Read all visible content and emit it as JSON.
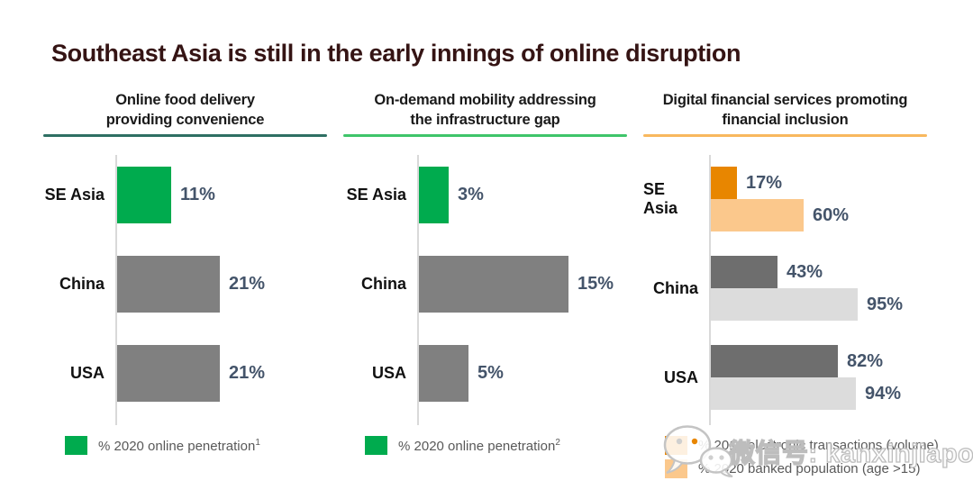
{
  "slide_title": "Southeast Asia is still in the early innings of online disruption",
  "watermark": {
    "icon": "wechat-icon",
    "text": "微信号: kanxinjiapo"
  },
  "colors": {
    "title_text": "#351414",
    "axis_line": "#d9d9d9",
    "value_label": "#44546a",
    "legend_text": "#595959",
    "green_accent": "#00ab4e",
    "gray_bar": "#808080",
    "dark_orange": "#e88600",
    "light_orange": "#fbc88c",
    "dark_gray_bar": "#6e6e6e",
    "light_gray_bar": "#dcdcdc"
  },
  "chart_data": [
    {
      "type": "bar",
      "orientation": "horizontal",
      "title": "Online food delivery providing convenience",
      "title_lines": [
        "Online food delivery",
        "providing convenience"
      ],
      "underline_color": "#2e6f63",
      "categories": [
        "SE Asia",
        "China",
        "USA"
      ],
      "series": [
        {
          "name": "% 2020 online penetration",
          "legend_superscript": "1",
          "legend_color": "#00ab4e",
          "values": [
            11,
            21,
            21
          ],
          "bar_colors": [
            "#00ab4e",
            "#808080",
            "#808080"
          ]
        }
      ],
      "value_suffix": "%",
      "xlim": [
        0,
        53
      ],
      "grid": false,
      "legend_position": "bottom-left"
    },
    {
      "type": "bar",
      "orientation": "horizontal",
      "title": "On-demand mobility addressing the infrastructure gap",
      "title_lines": [
        "On-demand mobility addressing",
        "the infrastructure gap"
      ],
      "underline_color": "#3fc56a",
      "categories": [
        "SE Asia",
        "China",
        "USA"
      ],
      "series": [
        {
          "name": "% 2020 online penetration",
          "legend_superscript": "2",
          "legend_color": "#00ab4e",
          "values": [
            3,
            15,
            5
          ],
          "bar_colors": [
            "#00ab4e",
            "#808080",
            "#808080"
          ]
        }
      ],
      "value_suffix": "%",
      "xlim": [
        0,
        26
      ],
      "grid": false,
      "legend_position": "bottom-left"
    },
    {
      "type": "bar",
      "orientation": "horizontal",
      "title": "Digital financial services promoting financial inclusion",
      "title_lines": [
        "Digital financial services promoting",
        "financial inclusion"
      ],
      "underline_color": "#f8b85e",
      "categories": [
        "SE Asia",
        "China",
        "USA"
      ],
      "series": [
        {
          "name": "% 2019 electronic transactions (volume)",
          "legend_color": "#e88600",
          "values": [
            17,
            43,
            82
          ],
          "bar_colors": [
            "#e88600",
            "#6e6e6e",
            "#6e6e6e"
          ]
        },
        {
          "name": "% 2020 banked population (age >15)",
          "legend_color": "#fbc88c",
          "values": [
            60,
            95,
            94
          ],
          "bar_colors": [
            "#fbc88c",
            "#dcdcdc",
            "#dcdcdc"
          ]
        }
      ],
      "value_suffix": "%",
      "xlim": [
        0,
        168
      ],
      "grid": false,
      "legend_position": "bottom-left"
    }
  ]
}
